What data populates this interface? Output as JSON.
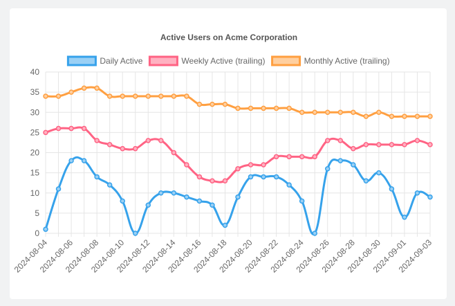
{
  "chart_data": {
    "type": "line",
    "title": "Active Users on Acme Corporation",
    "ylim": [
      0,
      40
    ],
    "y_ticks": [
      0,
      5,
      10,
      15,
      20,
      25,
      30,
      35,
      40
    ],
    "grid": true,
    "legend_position": "top-center",
    "x": [
      "2024-08-04",
      "2024-08-05",
      "2024-08-06",
      "2024-08-07",
      "2024-08-08",
      "2024-08-09",
      "2024-08-10",
      "2024-08-11",
      "2024-08-12",
      "2024-08-13",
      "2024-08-14",
      "2024-08-15",
      "2024-08-16",
      "2024-08-17",
      "2024-08-18",
      "2024-08-19",
      "2024-08-20",
      "2024-08-21",
      "2024-08-22",
      "2024-08-23",
      "2024-08-24",
      "2024-08-25",
      "2024-08-26",
      "2024-08-27",
      "2024-08-28",
      "2024-08-29",
      "2024-08-30",
      "2024-08-31",
      "2024-09-01",
      "2024-09-02",
      "2024-09-03"
    ],
    "x_tick_labels": [
      "2024-08-04",
      "2024-08-06",
      "2024-08-08",
      "2024-08-10",
      "2024-08-12",
      "2024-08-14",
      "2024-08-16",
      "2024-08-18",
      "2024-08-20",
      "2024-08-22",
      "2024-08-24",
      "2024-08-26",
      "2024-08-28",
      "2024-08-30",
      "2024-09-01",
      "2024-09-03"
    ],
    "series": [
      {
        "name": "Daily Active",
        "color": "#36a2eb",
        "fill": "#9ad0f5",
        "values": [
          1,
          11,
          18,
          18,
          14,
          12,
          8,
          0,
          7,
          10,
          10,
          9,
          8,
          7,
          2,
          9,
          14,
          14,
          14,
          12,
          8,
          0,
          16,
          18,
          17,
          13,
          15,
          11,
          4,
          10,
          9
        ]
      },
      {
        "name": "Weekly Active (trailing)",
        "color": "#ff6384",
        "fill": "#ffb1c1",
        "values": [
          25,
          26,
          26,
          26,
          23,
          22,
          21,
          21,
          23,
          23,
          20,
          17,
          14,
          13,
          13,
          16,
          17,
          17,
          19,
          19,
          19,
          19,
          23,
          23,
          21,
          22,
          22,
          22,
          22,
          23,
          22
        ]
      },
      {
        "name": "Monthly Active (trailing)",
        "color": "#ff9f40",
        "fill": "#ffcf9f",
        "values": [
          34,
          34,
          35,
          36,
          36,
          34,
          34,
          34,
          34,
          34,
          34,
          34,
          32,
          32,
          32,
          31,
          31,
          31,
          31,
          31,
          30,
          30,
          30,
          30,
          30,
          29,
          30,
          29,
          29,
          29,
          29
        ]
      }
    ]
  }
}
